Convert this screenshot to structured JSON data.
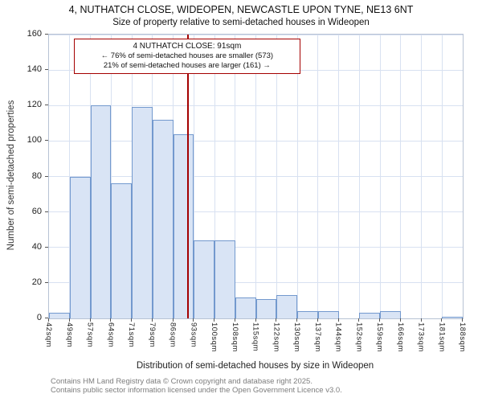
{
  "title": "4, NUTHATCH CLOSE, WIDEOPEN, NEWCASTLE UPON TYNE, NE13 6NT",
  "subtitle": "Size of property relative to semi-detached houses in Wideopen",
  "annotation": {
    "line1": "4 NUTHATCH CLOSE: 91sqm",
    "line2": "← 76% of semi-detached houses are smaller (573)",
    "line3": "21% of semi-detached houses are larger (161) →"
  },
  "footer": {
    "line1": "Contains HM Land Registry data © Crown copyright and database right 2025.",
    "line2": "Contains public sector information licensed under the Open Government Licence v3.0."
  },
  "chart_data": {
    "type": "bar",
    "title": "4, NUTHATCH CLOSE, WIDEOPEN, NEWCASTLE UPON TYNE, NE13 6NT",
    "subtitle": "Size of property relative to semi-detached houses in Wideopen",
    "xlabel": "Distribution of semi-detached houses by size in Wideopen",
    "ylabel": "Number of semi-detached properties",
    "ylim": [
      0,
      160
    ],
    "ytick_interval": 20,
    "grid": true,
    "bin_labels": [
      "42sqm",
      "49sqm",
      "57sqm",
      "64sqm",
      "71sqm",
      "79sqm",
      "86sqm",
      "93sqm",
      "100sqm",
      "108sqm",
      "115sqm",
      "122sqm",
      "130sqm",
      "137sqm",
      "144sqm",
      "152sqm",
      "159sqm",
      "166sqm",
      "173sqm",
      "181sqm",
      "188sqm"
    ],
    "values": [
      3,
      80,
      120,
      76,
      119,
      112,
      104,
      44,
      44,
      12,
      11,
      13,
      4,
      4,
      0,
      3,
      4,
      0,
      0,
      1
    ],
    "marker": {
      "label": "4 NUTHATCH CLOSE: 91sqm",
      "value": "91sqm",
      "bin_index": 6,
      "bin_fraction": 0.714
    },
    "colors": {
      "bar_fill": "#d9e4f5",
      "bar_border": "#7399ce",
      "marker_line": "#a40000",
      "gridline": "#d8e1f1",
      "annotation_border": "#a40000"
    }
  }
}
